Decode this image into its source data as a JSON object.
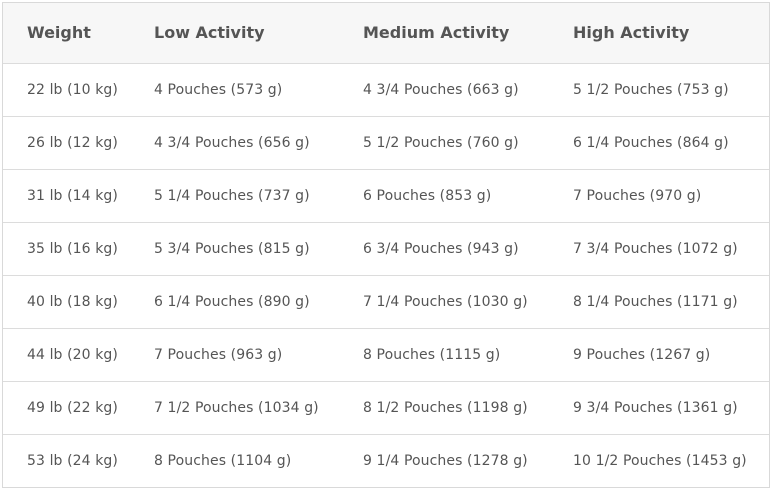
{
  "headers": [
    "Weight",
    "Low Activity",
    "Medium Activity",
    "High Activity"
  ],
  "rows": [
    [
      "22 lb (10 kg)",
      "4 Pouches (573 g)",
      "4 3/4 Pouches (663 g)",
      "5 1/2 Pouches (753 g)"
    ],
    [
      "26 lb (12 kg)",
      "4 3/4 Pouches (656 g)",
      "5 1/2 Pouches (760 g)",
      "6 1/4 Pouches (864 g)"
    ],
    [
      "31 lb (14 kg)",
      "5 1/4 Pouches (737 g)",
      "6 Pouches (853 g)",
      "7 Pouches (970 g)"
    ],
    [
      "35 lb (16 kg)",
      "5 3/4 Pouches (815 g)",
      "6 3/4 Pouches (943 g)",
      "7 3/4 Pouches (1072 g)"
    ],
    [
      "40 lb (18 kg)",
      "6 1/4 Pouches (890 g)",
      "7 1/4 Pouches (1030 g)",
      "8 1/4 Pouches (1171 g)"
    ],
    [
      "44 lb (20 kg)",
      "7 Pouches (963 g)",
      "8 Pouches (1115 g)",
      "9 Pouches (1267 g)"
    ],
    [
      "49 lb (22 kg)",
      "7 1/2 Pouches (1034 g)",
      "8 1/2 Pouches (1198 g)",
      "9 3/4 Pouches (1361 g)"
    ],
    [
      "53 lb (24 kg)",
      "8 Pouches (1104 g)",
      "9 1/4 Pouches (1278 g)",
      "10 1/2 Pouches (1453 g)"
    ]
  ]
}
